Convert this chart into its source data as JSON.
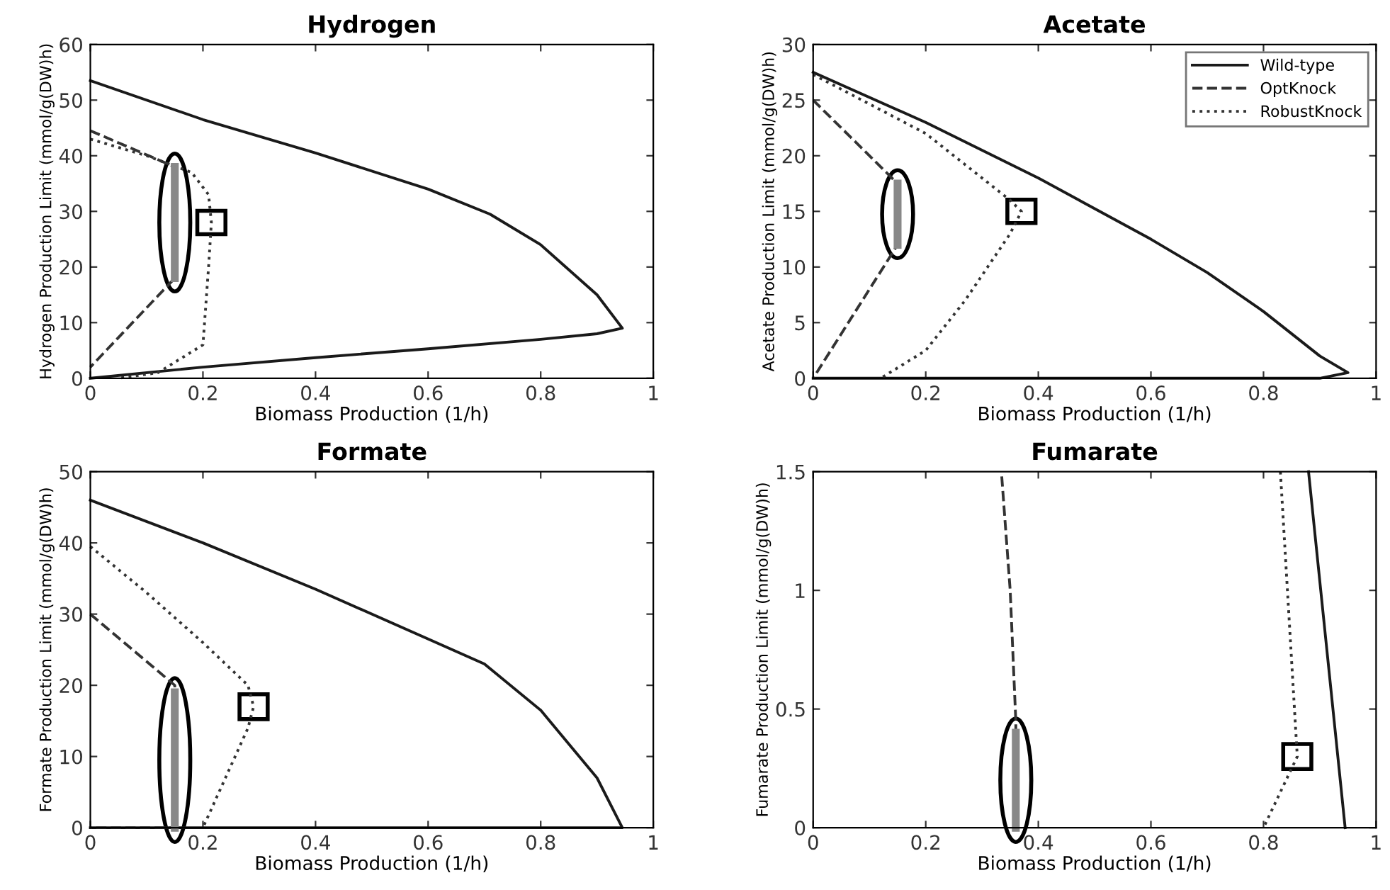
{
  "chart_data": [
    {
      "type": "line",
      "title": "Hydrogen",
      "xlabel": "Biomass Production (1/h)",
      "ylabel": "Hydrogen Production Limit (mmol/g(DW)h)",
      "xlim": [
        0,
        1
      ],
      "xticks": [
        0,
        0.2,
        0.4,
        0.6,
        0.8,
        1
      ],
      "ylim": [
        0,
        60
      ],
      "yticks": [
        0,
        10,
        20,
        30,
        40,
        50,
        60
      ],
      "grid": false,
      "legend": false,
      "series": [
        {
          "color": "#1a1a1a",
          "line_style": "solid",
          "x": [
            0,
            0.2,
            0.4,
            0.6,
            0.71,
            0.8,
            0.9,
            0.945,
            0.9,
            0.8,
            0.6,
            0.4,
            0.2,
            0
          ],
          "values": [
            53.5,
            46.5,
            40.5,
            34,
            29.5,
            24,
            15,
            9,
            8,
            7,
            5.3,
            3.7,
            2,
            0
          ]
        },
        {
          "color": "#333333",
          "line_style": "dashed",
          "x": [
            0,
            0.15,
            0.15,
            0
          ],
          "values": [
            44.5,
            38,
            18,
            2
          ]
        },
        {
          "color": "#333333",
          "line_style": "dotted",
          "x": [
            0,
            0.1,
            0.18,
            0.21,
            0.215,
            0.21,
            0.2,
            0.12,
            0.05
          ],
          "values": [
            43,
            40,
            37,
            33,
            28,
            20,
            6,
            1,
            0
          ]
        },
        {
          "color": "#888888",
          "line_style": "solid",
          "x": [
            0.15,
            0.15
          ],
          "values": [
            18,
            38
          ]
        }
      ]
    },
    {
      "type": "line",
      "title": "Acetate",
      "xlabel": "Biomass Production (1/h)",
      "ylabel": "Acetate Production Limit (mmol/g(DW)h)",
      "xlim": [
        0,
        1
      ],
      "xticks": [
        0,
        0.2,
        0.4,
        0.6,
        0.8,
        1
      ],
      "ylim": [
        0,
        30
      ],
      "yticks": [
        0,
        5,
        10,
        15,
        20,
        25,
        30
      ],
      "grid": false,
      "legend": "top right",
      "series": [
        {
          "name": "Wild-type",
          "color": "#1a1a1a",
          "line_style": "solid",
          "x": [
            0,
            0.2,
            0.4,
            0.6,
            0.7,
            0.8,
            0.9,
            0.95,
            0.9,
            0
          ],
          "values": [
            27.5,
            23,
            18,
            12.5,
            9.5,
            6,
            2,
            0.5,
            0,
            0
          ]
        },
        {
          "name": "OptKnock",
          "color": "#333333",
          "line_style": "dashed",
          "x": [
            0,
            0.15,
            0.15,
            0
          ],
          "values": [
            25,
            17.5,
            12,
            0
          ]
        },
        {
          "name": "RobustKnock",
          "color": "#333333",
          "line_style": "dotted",
          "x": [
            0,
            0.2,
            0.35,
            0.37,
            0.35,
            0.27,
            0.2,
            0.12
          ],
          "values": [
            27.3,
            22,
            16,
            15,
            13,
            7,
            2.5,
            0
          ]
        },
        {
          "color": "#888888",
          "line_style": "solid",
          "x": [
            0.15,
            0.15
          ],
          "values": [
            12,
            17.5
          ]
        }
      ]
    },
    {
      "type": "line",
      "title": "Formate",
      "xlabel": "Biomass Production (1/h)",
      "ylabel": "Formate Production Limit (mmol/g(DW)h)",
      "xlim": [
        0,
        1
      ],
      "xticks": [
        0,
        0.2,
        0.4,
        0.6,
        0.8,
        1
      ],
      "ylim": [
        0,
        50
      ],
      "yticks": [
        0,
        10,
        20,
        30,
        40,
        50
      ],
      "grid": false,
      "legend": false,
      "series": [
        {
          "color": "#1a1a1a",
          "line_style": "solid",
          "x": [
            0,
            0.2,
            0.4,
            0.6,
            0.7,
            0.8,
            0.9,
            0.945,
            0
          ],
          "values": [
            46,
            40,
            33.5,
            26.5,
            23,
            16.5,
            7,
            0,
            0
          ]
        },
        {
          "color": "#333333",
          "line_style": "dashed",
          "x": [
            0,
            0.15,
            0.15,
            0
          ],
          "values": [
            30,
            20,
            0,
            0
          ]
        },
        {
          "color": "#333333",
          "line_style": "dotted",
          "x": [
            0,
            0.1,
            0.2,
            0.28,
            0.29,
            0.28,
            0.2
          ],
          "values": [
            39.5,
            33,
            26,
            20,
            17,
            14,
            0
          ]
        },
        {
          "color": "#888888",
          "line_style": "solid",
          "x": [
            0.15,
            0.15
          ],
          "values": [
            0,
            19
          ]
        }
      ]
    },
    {
      "type": "line",
      "title": "Fumarate",
      "xlabel": "Biomass Production (1/h)",
      "ylabel": "Fumarate Production Limit (mmol/g(DW)h)",
      "xlim": [
        0,
        1
      ],
      "xticks": [
        0,
        0.2,
        0.4,
        0.6,
        0.8,
        1
      ],
      "ylim": [
        0,
        1.5
      ],
      "yticks": [
        0,
        0.5,
        1,
        1.5
      ],
      "grid": false,
      "legend": false,
      "series": [
        {
          "color": "#1a1a1a",
          "line_style": "solid",
          "x": [
            0.88,
            0.945
          ],
          "values": [
            1.5,
            0
          ]
        },
        {
          "color": "#333333",
          "line_style": "dashed",
          "x": [
            0.335,
            0.35,
            0.36,
            0.36
          ],
          "values": [
            1.48,
            1,
            0.45,
            0
          ]
        },
        {
          "color": "#333333",
          "line_style": "dotted",
          "x": [
            0.83,
            0.86,
            0.8
          ],
          "values": [
            1.5,
            0.3,
            0
          ]
        },
        {
          "color": "#888888",
          "line_style": "solid",
          "x": [
            0.36,
            0.36
          ],
          "values": [
            0,
            0.4
          ]
        }
      ]
    }
  ]
}
